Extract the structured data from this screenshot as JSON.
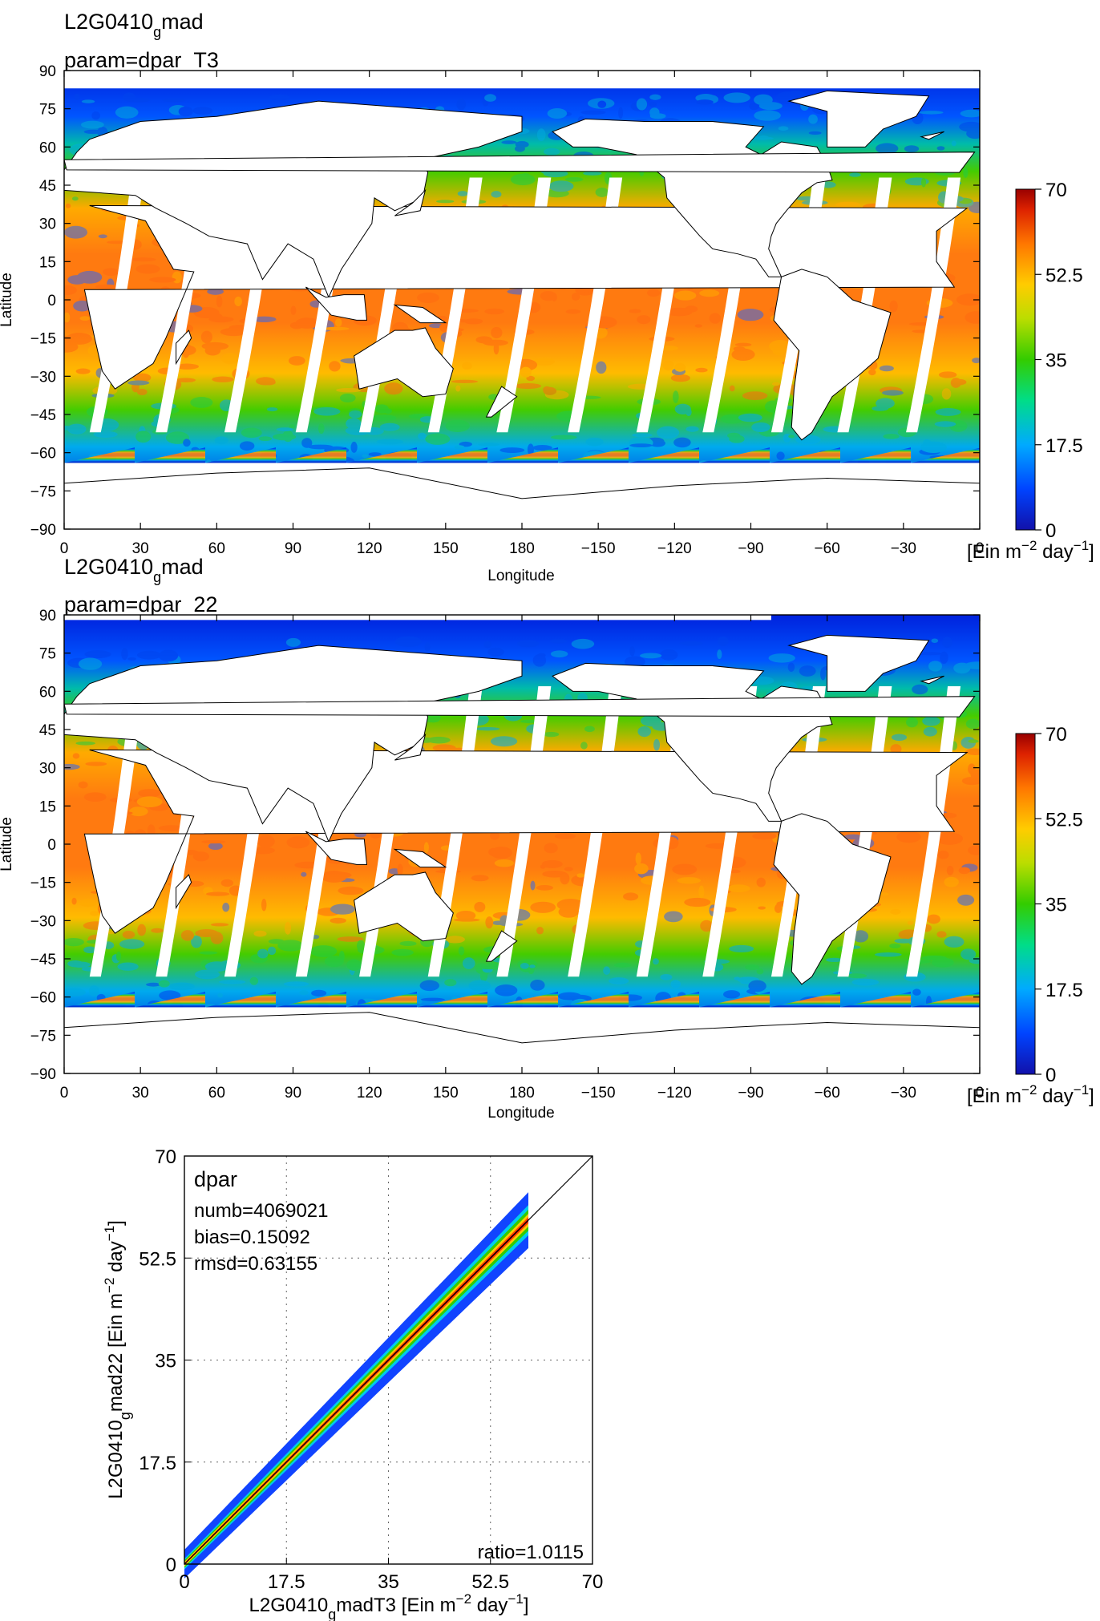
{
  "panels": [
    {
      "title_line1_pre": "L2G0410",
      "title_line1_sub": "g",
      "title_line1_post": "mad",
      "title_line2": "param=dpar_T3",
      "ylabel": "Latitude",
      "xlabel": "Longitude",
      "colorbar_units": "[Ein m",
      "colorbar_units_exp": "−2",
      "colorbar_units_post": " day",
      "colorbar_units_exp2": "−1",
      "colorbar_units_end": "]"
    },
    {
      "title_line1_pre": "L2G0410",
      "title_line1_sub": "g",
      "title_line1_post": "mad",
      "title_line2": "param=dpar_22",
      "ylabel": "Latitude",
      "xlabel": "Longitude",
      "colorbar_units": "[Ein m",
      "colorbar_units_exp": "−2",
      "colorbar_units_post": " day",
      "colorbar_units_exp2": "−1",
      "colorbar_units_end": "]"
    }
  ],
  "colors": {
    "scale": [
      "#0000cc",
      "#0055ff",
      "#00aaff",
      "#00dd88",
      "#33cc00",
      "#aadd00",
      "#ffdd00",
      "#ff8800",
      "#ee3300",
      "#aa0000"
    ],
    "land": "#ffffff",
    "coast": "#000000"
  },
  "chart_data": [
    {
      "type": "heatmap",
      "title": "L2G0410_g mad param=dpar_T3",
      "xlabel": "Longitude",
      "ylabel": "Latitude",
      "x_ticks": [
        "0",
        "30",
        "60",
        "90",
        "120",
        "150",
        "180",
        "−150",
        "−120",
        "−90",
        "−60",
        "−30",
        "0"
      ],
      "y_ticks": [
        "90",
        "75",
        "60",
        "45",
        "30",
        "15",
        "0",
        "−15",
        "−30",
        "−45",
        "−60",
        "−75",
        "−90"
      ],
      "colorbar_ticks": [
        "70",
        "52.5",
        "35",
        "17.5",
        "0"
      ],
      "colorbar_range": [
        0,
        70
      ],
      "colorbar_label": "[Ein m−2 day−1]"
    },
    {
      "type": "heatmap",
      "title": "L2G0410_g mad param=dpar_22",
      "xlabel": "Longitude",
      "ylabel": "Latitude",
      "x_ticks": [
        "0",
        "30",
        "60",
        "90",
        "120",
        "150",
        "180",
        "−150",
        "−120",
        "−90",
        "−60",
        "−30",
        "0"
      ],
      "y_ticks": [
        "90",
        "75",
        "60",
        "45",
        "30",
        "15",
        "0",
        "−15",
        "−30",
        "−45",
        "−60",
        "−75",
        "−90"
      ],
      "colorbar_ticks": [
        "70",
        "52.5",
        "35",
        "17.5",
        "0"
      ],
      "colorbar_range": [
        0,
        70
      ],
      "colorbar_label": "[Ein m−2 day−1]"
    },
    {
      "type": "scatter",
      "label": "dpar",
      "stats": [
        "numb=4069021",
        "bias=0.15092",
        "rmsd=0.63155"
      ],
      "ratio": "ratio=1.0115",
      "xlabel_pre": "L2G0410",
      "xlabel_sub": "g",
      "xlabel_post": "madT3 [Ein m",
      "xlabel_exp": "−2",
      "xlabel_mid": " day",
      "xlabel_exp2": "−1",
      "xlabel_end": "]",
      "ylabel_pre": "L2G0410",
      "ylabel_sub": "g",
      "ylabel_post": "mad22 [Ein m",
      "ylabel_exp": "−2",
      "ylabel_mid": " day",
      "ylabel_exp2": "−1",
      "ylabel_end": "]",
      "ticks": [
        "0",
        "17.5",
        "35",
        "52.5",
        "70"
      ],
      "xlim": [
        0,
        70
      ],
      "ylim": [
        0,
        70
      ],
      "one_to_one_line": true,
      "grid": true,
      "point_cloud_range": [
        0,
        59
      ]
    }
  ]
}
